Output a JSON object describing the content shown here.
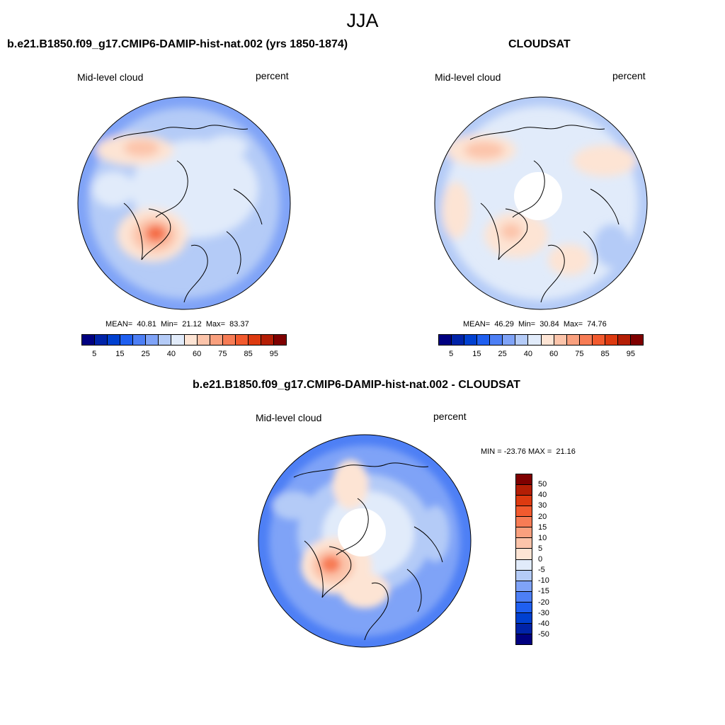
{
  "title": "JJA",
  "panels": [
    {
      "title": "b.e21.B1850.f09_g17.CMIP6-DAMIP-hist-nat.002 (yrs 1850-1874)",
      "left_label": "Mid-level cloud",
      "right_label": "percent",
      "stats": "MEAN=  40.81  Min=  21.12  Max=  83.37"
    },
    {
      "title": "CLOUDSAT",
      "left_label": "Mid-level cloud",
      "right_label": "percent",
      "stats": "MEAN=  46.29  Min=  30.84  Max=  74.76"
    },
    {
      "title": "b.e21.B1850.f09_g17.CMIP6-DAMIP-hist-nat.002 - CLOUDSAT",
      "left_label": "Mid-level cloud",
      "right_label": "percent",
      "stats": "MIN = -23.76 MAX =  21.16"
    }
  ],
  "colorbar_abs": {
    "colors": [
      "#000080",
      "#0023a8",
      "#0040d0",
      "#1f5ff0",
      "#4d7ff5",
      "#7fa3f7",
      "#b4cbf7",
      "#e1ebfa",
      "#fde4d4",
      "#fcc4aa",
      "#f9a07e",
      "#f77c55",
      "#f25a2e",
      "#dd3a10",
      "#b41e05",
      "#7f0000"
    ],
    "tick_labels": [
      "5",
      "15",
      "25",
      "40",
      "60",
      "75",
      "85",
      "95"
    ]
  },
  "colorbar_diff": {
    "colors": [
      "#7f0000",
      "#b41e05",
      "#dd3a10",
      "#f25a2e",
      "#f77c55",
      "#f9a07e",
      "#fcc4aa",
      "#fde4d4",
      "#e1ebfa",
      "#b4cbf7",
      "#7fa3f7",
      "#4d7ff5",
      "#1f5ff0",
      "#0040d0",
      "#0023a8",
      "#000080"
    ],
    "tick_labels": [
      "50",
      "40",
      "30",
      "20",
      "15",
      "10",
      "5",
      "0",
      "-5",
      "-10",
      "-15",
      "-20",
      "-30",
      "-40",
      "-50"
    ]
  }
}
